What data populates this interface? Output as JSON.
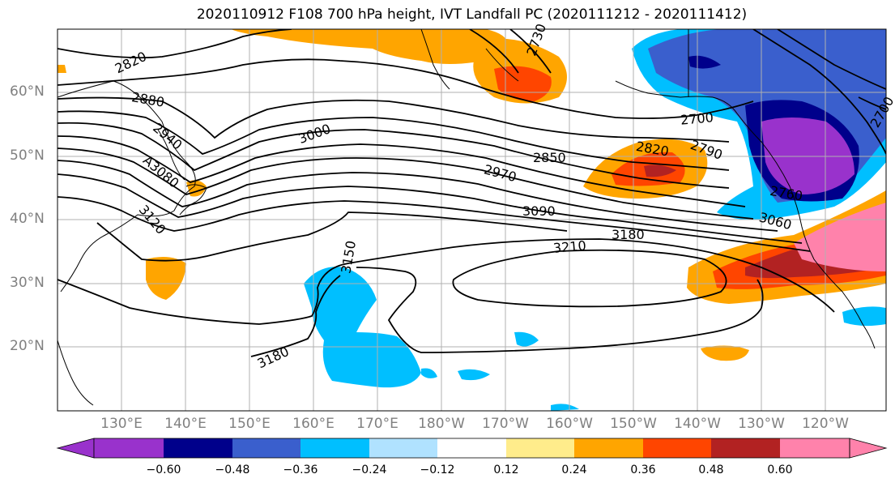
{
  "title": "2020110912 F108 700 hPa height, IVT Landfall PC (2020111212 - 2020111412)",
  "latitude_labels": [
    "60°N",
    "50°N",
    "40°N",
    "30°N",
    "20°N"
  ],
  "longitude_labels": [
    "130°E",
    "140°E",
    "150°E",
    "160°E",
    "170°E",
    "180°W",
    "170°W",
    "160°W",
    "150°W",
    "140°W",
    "130°W",
    "120°W"
  ],
  "contour_labels": [
    "2820",
    "2880",
    "2940",
    "3000",
    "A3080",
    "3120",
    "3150",
    "2850",
    "2970",
    "3090",
    "3210",
    "3180",
    "2820",
    "2790",
    "2700",
    "2760",
    "2730",
    "3060",
    "3180",
    "2700"
  ],
  "colorbar": {
    "ticks": [
      "−0.60",
      "−0.48",
      "−0.36",
      "−0.24",
      "−0.12",
      "0.12",
      "0.24",
      "0.36",
      "0.48",
      "0.60"
    ],
    "colors": [
      "#9932CC",
      "#00008B",
      "#3A5FCD",
      "#00BFFF",
      "#B0E2FF",
      "#FFFFFF",
      "#FFEC8B",
      "#FFA500",
      "#FF4500",
      "#B22222",
      "#FF82AB"
    ]
  }
}
